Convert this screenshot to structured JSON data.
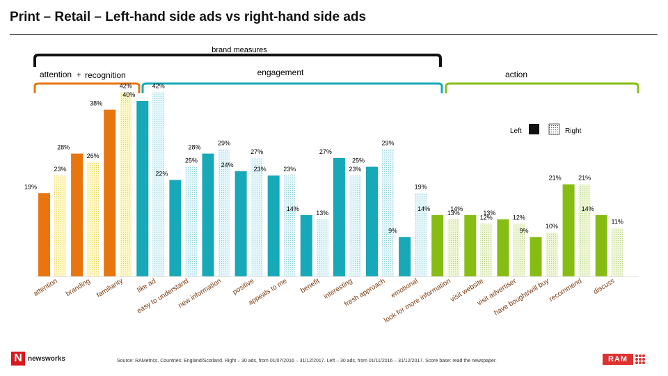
{
  "title": "Print – Retail – Left-hand side ads vs right-hand side ads",
  "groups": {
    "brand_measures": "brand measures",
    "attention": "attention",
    "plus": "+",
    "recognition": "recognition",
    "engagement": "engagement",
    "action": "action"
  },
  "colors": {
    "attention": "#e8760e",
    "engagement": "#17a9b8",
    "action": "#87bd13",
    "bracket_dark": "#111111"
  },
  "chart_data": {
    "type": "bar",
    "categories": [
      "attention",
      "branding",
      "familiarity",
      "like ad",
      "easy to understand",
      "new information",
      "positive",
      "appeals to me",
      "benefit",
      "interesting",
      "fresh approach",
      "emotional",
      "look for more information",
      "visit website",
      "visit advertiser",
      "have bought/will buy",
      "recommend",
      "discuss"
    ],
    "category_group": [
      "attention",
      "attention",
      "attention",
      "engagement",
      "engagement",
      "engagement",
      "engagement",
      "engagement",
      "engagement",
      "engagement",
      "engagement",
      "engagement",
      "action",
      "action",
      "action",
      "action",
      "action",
      "action"
    ],
    "series": [
      {
        "name": "Left",
        "values": [
          19,
          28,
          38,
          40,
          22,
          28,
          24,
          23,
          14,
          27,
          25,
          9,
          14,
          14,
          13,
          9,
          21,
          14
        ]
      },
      {
        "name": "Right",
        "values": [
          23,
          26,
          42,
          42,
          25,
          29,
          27,
          23,
          13,
          23,
          29,
          19,
          13,
          12,
          12,
          10,
          21,
          11
        ]
      }
    ],
    "value_labels": {
      "Left": [
        "19%",
        "28%",
        "38%",
        "40%",
        "22%",
        "28%",
        "24%",
        "23%",
        "14%",
        "27%",
        "25%",
        "9%",
        "14%",
        "14%",
        "13%",
        "9%",
        "21%",
        "14%"
      ],
      "Right": [
        "23%",
        "26%",
        "42%",
        "42%",
        "25%",
        "29%",
        "27%",
        "23%",
        "13%",
        "23%",
        "29%",
        "19%",
        "13%",
        "12%",
        "12%",
        "10%",
        "21%",
        "11%"
      ]
    },
    "legend": {
      "left": "Left",
      "right": "Right",
      "position": "top-right"
    },
    "ylim": [
      0,
      45
    ],
    "grid": false,
    "xlabel": "",
    "ylabel": ""
  },
  "source": "Source: RAMetrics. Countries: England/Scotland. Right – 30 ads, from 01/07/2016 – 31/12/2017. Left – 30 ads, from 01/11/2016 – 31/12/2017. Score base: read the newspaper.",
  "logos": {
    "newsworks_mark": "N",
    "newsworks": "newsworks",
    "ram": "RAM"
  }
}
